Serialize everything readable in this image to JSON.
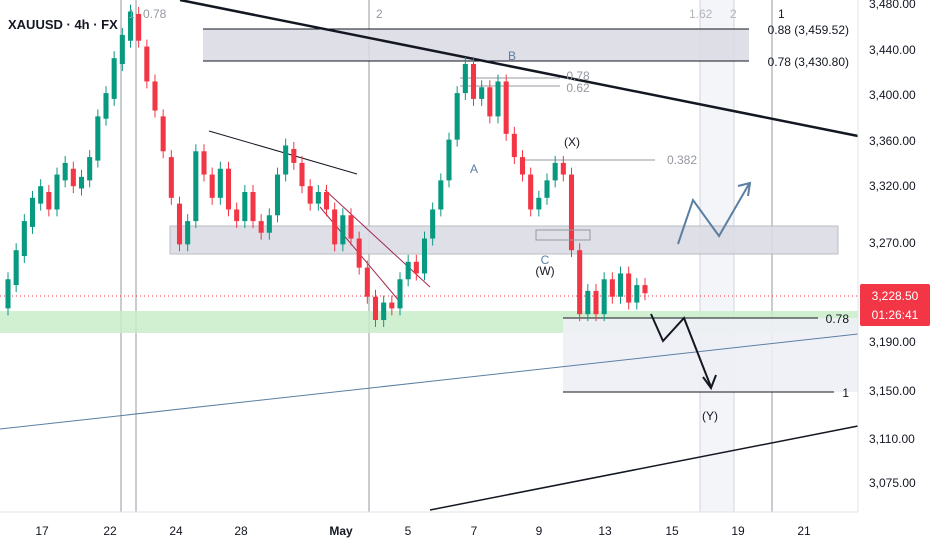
{
  "symbol_label": "XAUUSD · 4h · FX",
  "chart_data": {
    "type": "candlestick",
    "title": "XAUUSD · 4h · FX",
    "ylim": [
      3040,
      3480
    ],
    "y_ticks": [
      "3,480.00",
      "3,440.00",
      "3,400.00",
      "3,360.00",
      "3,320.00",
      "3,270.00",
      "3,190.00",
      "3,150.00",
      "3,110.00",
      "3,075.00"
    ],
    "x_ticks": [
      "17",
      "22",
      "24",
      "28",
      "May",
      "5",
      "7",
      "9",
      "13",
      "15",
      "19",
      "21"
    ],
    "last_price": "3,228.50",
    "countdown": "01:26:41",
    "colors": {
      "up": "#089981",
      "down": "#f23645",
      "last_price": "#f23645",
      "support_zone": "#b7e8b9",
      "resistance_zone": "#d9d9e3"
    },
    "fib_right_labels": [
      {
        "label": "0.88 (3,459.52)",
        "value": 3459.52
      },
      {
        "label": "0.78 (3,430.80)",
        "value": 3430.8
      },
      {
        "label": "0.78",
        "value": 3205
      },
      {
        "label": "1",
        "value": 3150
      }
    ],
    "wave_labels": [
      "B",
      "A",
      "C",
      "(X)",
      "(W)",
      "(Y)"
    ],
    "fib_retrace_labels": [
      "0.78",
      "0.62",
      "0.382"
    ],
    "time_fib_labels": [
      "1",
      "0.78",
      "2",
      "1.62",
      "2",
      "1"
    ],
    "candles": [
      [
        3215,
        3240
      ],
      [
        3235,
        3265
      ],
      [
        3260,
        3290
      ],
      [
        3285,
        3310
      ],
      [
        3305,
        3320
      ],
      [
        3315,
        3300
      ],
      [
        3300,
        3330
      ],
      [
        3325,
        3340
      ],
      [
        3335,
        3320
      ],
      [
        3318,
        3328
      ],
      [
        3325,
        3345
      ],
      [
        3342,
        3380
      ],
      [
        3378,
        3400
      ],
      [
        3395,
        3430
      ],
      [
        3425,
        3450
      ],
      [
        3445,
        3470
      ],
      [
        3468,
        3445
      ],
      [
        3440,
        3410
      ],
      [
        3410,
        3385
      ],
      [
        3380,
        3350
      ],
      [
        3345,
        3310
      ],
      [
        3305,
        3270
      ],
      [
        3270,
        3290
      ],
      [
        3290,
        3350
      ],
      [
        3350,
        3330
      ],
      [
        3330,
        3310
      ],
      [
        3310,
        3335
      ],
      [
        3335,
        3300
      ],
      [
        3300,
        3290
      ],
      [
        3290,
        3315
      ],
      [
        3315,
        3290
      ],
      [
        3290,
        3280
      ],
      [
        3280,
        3295
      ],
      [
        3295,
        3330
      ],
      [
        3330,
        3355
      ],
      [
        3352,
        3340
      ],
      [
        3340,
        3320
      ],
      [
        3320,
        3305
      ],
      [
        3305,
        3315
      ],
      [
        3315,
        3300
      ],
      [
        3300,
        3270
      ],
      [
        3270,
        3295
      ],
      [
        3295,
        3275
      ],
      [
        3275,
        3250
      ],
      [
        3250,
        3225
      ],
      [
        3225,
        3205
      ],
      [
        3205,
        3220
      ],
      [
        3220,
        3215
      ],
      [
        3215,
        3240
      ],
      [
        3240,
        3255
      ],
      [
        3255,
        3245
      ],
      [
        3245,
        3275
      ],
      [
        3275,
        3300
      ],
      [
        3300,
        3325
      ],
      [
        3325,
        3360
      ],
      [
        3360,
        3400
      ],
      [
        3400,
        3425
      ],
      [
        3425,
        3395
      ],
      [
        3395,
        3405
      ],
      [
        3405,
        3380
      ],
      [
        3380,
        3410
      ],
      [
        3410,
        3365
      ],
      [
        3365,
        3345
      ],
      [
        3345,
        3330
      ],
      [
        3330,
        3300
      ],
      [
        3300,
        3310
      ],
      [
        3310,
        3325
      ],
      [
        3325,
        3340
      ],
      [
        3340,
        3330
      ],
      [
        3330,
        3265
      ],
      [
        3265,
        3210
      ],
      [
        3210,
        3230
      ],
      [
        3230,
        3210
      ],
      [
        3210,
        3240
      ],
      [
        3240,
        3225
      ],
      [
        3225,
        3245
      ],
      [
        3245,
        3220
      ],
      [
        3220,
        3235
      ],
      [
        3235,
        3228
      ]
    ]
  }
}
